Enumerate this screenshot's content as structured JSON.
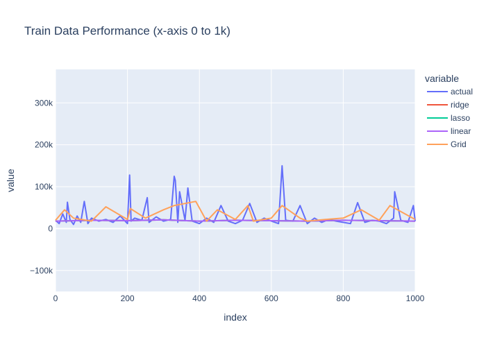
{
  "chart_data": {
    "type": "line",
    "title": "Train Data Performance (x-axis 0 to 1k)",
    "xlabel": "index",
    "ylabel": "value",
    "xlim": [
      0,
      1000
    ],
    "ylim": [
      -150000,
      380000
    ],
    "x_ticks": [
      0,
      200,
      400,
      600,
      800,
      1000
    ],
    "x_tick_labels": [
      "0",
      "200",
      "400",
      "600",
      "800",
      "1000"
    ],
    "y_ticks": [
      -100000,
      0,
      100000,
      200000,
      300000
    ],
    "y_tick_labels": [
      "−100k",
      "0",
      "100k",
      "200k",
      "300k"
    ],
    "legend_title": "variable",
    "legend_position": "right",
    "grid": true,
    "plot_background": "#e5ecf6",
    "series": [
      {
        "name": "actual",
        "color": "#636efa",
        "x": [
          0,
          10,
          20,
          30,
          33,
          40,
          50,
          60,
          70,
          80,
          90,
          100,
          120,
          140,
          160,
          180,
          200,
          206,
          210,
          220,
          240,
          255,
          260,
          280,
          300,
          320,
          330,
          333,
          340,
          345,
          360,
          368,
          380,
          400,
          420,
          440,
          460,
          480,
          500,
          520,
          540,
          560,
          580,
          600,
          620,
          630,
          640,
          660,
          680,
          700,
          720,
          740,
          760,
          780,
          800,
          820,
          840,
          860,
          880,
          900,
          920,
          940,
          943,
          960,
          980,
          995,
          1000
        ],
        "values": [
          20000,
          12000,
          35000,
          15000,
          63000,
          22000,
          10000,
          30000,
          15000,
          65000,
          12000,
          25000,
          18000,
          22000,
          15000,
          30000,
          12000,
          128000,
          18000,
          25000,
          20000,
          74000,
          15000,
          28000,
          18000,
          22000,
          125000,
          115000,
          15000,
          88000,
          20000,
          97000,
          18000,
          12000,
          25000,
          15000,
          55000,
          18000,
          12000,
          20000,
          60000,
          15000,
          25000,
          18000,
          12000,
          150000,
          20000,
          18000,
          55000,
          12000,
          25000,
          15000,
          22000,
          18000,
          15000,
          12000,
          62000,
          15000,
          20000,
          18000,
          12000,
          25000,
          88000,
          20000,
          15000,
          55000,
          18000
        ]
      },
      {
        "name": "ridge",
        "color": "#ef553b",
        "x": [
          0,
          100,
          200,
          300,
          400,
          500,
          600,
          700,
          800,
          900,
          1000
        ],
        "values": [
          18000,
          20000,
          19000,
          21000,
          18000,
          20000,
          19000,
          18000,
          20000,
          19000,
          18000
        ]
      },
      {
        "name": "lasso",
        "color": "#00cc96",
        "x": [
          0,
          100,
          200,
          300,
          400,
          500,
          600,
          700,
          800,
          900,
          1000
        ],
        "values": [
          18000,
          20000,
          19000,
          21000,
          18000,
          20000,
          19000,
          18000,
          20000,
          19000,
          18000
        ]
      },
      {
        "name": "linear",
        "color": "#ab63fa",
        "x": [
          0,
          100,
          200,
          300,
          400,
          500,
          600,
          700,
          800,
          900,
          1000
        ],
        "values": [
          18000,
          20000,
          19000,
          21000,
          18000,
          20000,
          19000,
          18000,
          20000,
          19000,
          18000
        ]
      },
      {
        "name": "Grid",
        "color": "#ffa15a",
        "x": [
          0,
          25,
          50,
          100,
          140,
          200,
          208,
          250,
          300,
          330,
          390,
          420,
          450,
          500,
          535,
          550,
          600,
          630,
          680,
          700,
          750,
          800,
          850,
          900,
          930,
          1000
        ],
        "values": [
          20000,
          45000,
          25000,
          18000,
          52000,
          22000,
          48000,
          25000,
          45000,
          55000,
          65000,
          18000,
          45000,
          22000,
          55000,
          18000,
          25000,
          55000,
          25000,
          18000,
          22000,
          25000,
          45000,
          20000,
          55000,
          22000
        ]
      }
    ]
  }
}
